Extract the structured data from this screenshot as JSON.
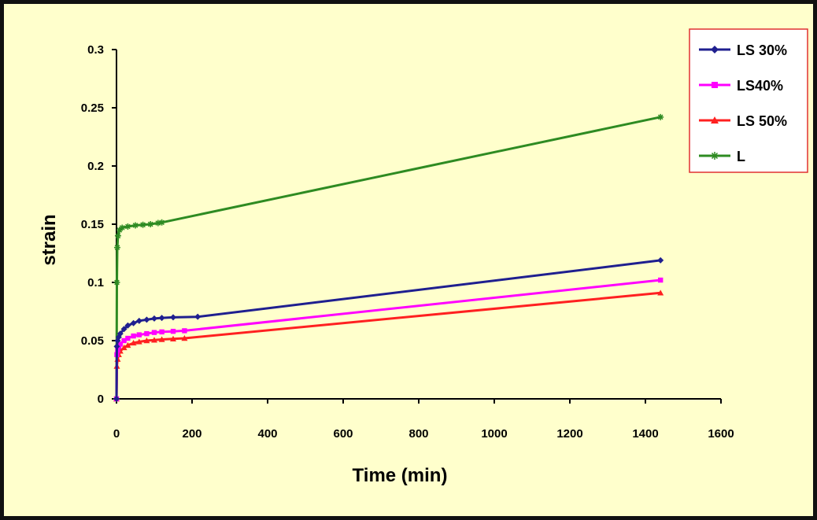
{
  "chart_data": {
    "type": "line",
    "xlabel": "Time (min)",
    "ylabel": "strain",
    "xlim": [
      0,
      1600
    ],
    "ylim": [
      0,
      0.3
    ],
    "x_ticks": [
      0,
      200,
      400,
      600,
      800,
      1000,
      1200,
      1400,
      1600
    ],
    "y_ticks": [
      0,
      0.05,
      0.1,
      0.15,
      0.2,
      0.25,
      0.3
    ],
    "x_tick_labels": [
      "0",
      "200",
      "400",
      "600",
      "800",
      "1000",
      "1200",
      "1400",
      "1600"
    ],
    "y_tick_labels": [
      "0",
      "0.05",
      "0.1",
      "0.15",
      "0.2",
      "0.25",
      "0.3"
    ],
    "legend_position": "top-right",
    "grid": false,
    "background_color": "#FFFFCC",
    "series": [
      {
        "name": "LS 30%",
        "color": "#1F1F8F",
        "marker": "diamond",
        "points": [
          [
            0,
            0
          ],
          [
            1,
            0.045
          ],
          [
            3,
            0.05
          ],
          [
            6,
            0.053
          ],
          [
            10,
            0.056
          ],
          [
            20,
            0.06
          ],
          [
            30,
            0.063
          ],
          [
            45,
            0.065
          ],
          [
            60,
            0.067
          ],
          [
            80,
            0.068
          ],
          [
            100,
            0.069
          ],
          [
            120,
            0.0695
          ],
          [
            150,
            0.07
          ],
          [
            215,
            0.0705
          ],
          [
            1440,
            0.119
          ]
        ]
      },
      {
        "name": "LS40%",
        "color": "#FF00FF",
        "marker": "square",
        "points": [
          [
            0,
            0
          ],
          [
            1,
            0.038
          ],
          [
            3,
            0.042
          ],
          [
            6,
            0.045
          ],
          [
            10,
            0.047
          ],
          [
            20,
            0.05
          ],
          [
            30,
            0.052
          ],
          [
            45,
            0.054
          ],
          [
            60,
            0.055
          ],
          [
            80,
            0.056
          ],
          [
            100,
            0.057
          ],
          [
            120,
            0.0575
          ],
          [
            150,
            0.058
          ],
          [
            180,
            0.0585
          ],
          [
            1440,
            0.102
          ]
        ]
      },
      {
        "name": "LS 50%",
        "color": "#FF2020",
        "marker": "triangle",
        "points": [
          [
            0,
            0
          ],
          [
            1,
            0.028
          ],
          [
            3,
            0.034
          ],
          [
            6,
            0.038
          ],
          [
            10,
            0.041
          ],
          [
            20,
            0.044
          ],
          [
            30,
            0.046
          ],
          [
            45,
            0.048
          ],
          [
            60,
            0.049
          ],
          [
            80,
            0.05
          ],
          [
            100,
            0.0505
          ],
          [
            120,
            0.051
          ],
          [
            150,
            0.0515
          ],
          [
            180,
            0.052
          ],
          [
            1440,
            0.091
          ]
        ]
      },
      {
        "name": "L",
        "color": "#2E8B22",
        "marker": "star",
        "points": [
          [
            0,
            0
          ],
          [
            1,
            0.1
          ],
          [
            2,
            0.13
          ],
          [
            4,
            0.14
          ],
          [
            8,
            0.145
          ],
          [
            15,
            0.147
          ],
          [
            30,
            0.148
          ],
          [
            50,
            0.149
          ],
          [
            70,
            0.1495
          ],
          [
            90,
            0.15
          ],
          [
            110,
            0.151
          ],
          [
            120,
            0.1515
          ],
          [
            1440,
            0.242
          ]
        ]
      }
    ]
  }
}
